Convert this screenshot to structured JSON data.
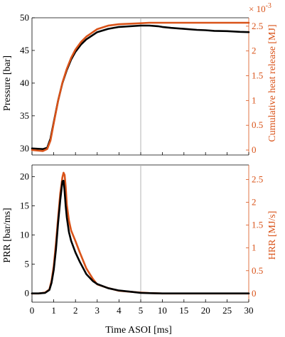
{
  "colors": {
    "left_axis": "#000000",
    "right_axis": "#d95319",
    "divider": "#b3b3b3"
  },
  "x_axis": {
    "label": "Time ASOI [ms]",
    "segments": [
      {
        "range": [
          0,
          5
        ],
        "ticks": [
          "0",
          "1",
          "2",
          "3",
          "4",
          "5"
        ]
      },
      {
        "range": [
          5,
          30
        ],
        "ticks": [
          "10",
          "15",
          "20",
          "25",
          "30"
        ]
      }
    ]
  },
  "chart_data": [
    {
      "type": "line",
      "panel": "top",
      "grid": false,
      "left_axis": {
        "label": "Pressure [bar]",
        "ylim": [
          29,
          50
        ],
        "ticks": [
          "30",
          "35",
          "40",
          "45",
          "50"
        ]
      },
      "right_axis": {
        "label": "Cumulative heat release [MJ]",
        "ylim": [
          -0.0001,
          0.00267
        ],
        "ticks": [
          "0",
          "0.5",
          "1",
          "1.5",
          "2",
          "2.5"
        ],
        "exponent_label": "× 10",
        "exponent_power": "-3"
      },
      "series": [
        {
          "axis": "left",
          "color": "#000000",
          "x": [
            0,
            0.5,
            0.7,
            0.85,
            1.0,
            1.2,
            1.4,
            1.6,
            1.8,
            2.0,
            2.25,
            2.5,
            3.0,
            3.5,
            4.0,
            5.0,
            7,
            9,
            10,
            12,
            15,
            18,
            20,
            22,
            25,
            28,
            30
          ],
          "y": [
            30.0,
            29.9,
            30.1,
            31.5,
            34.0,
            37.3,
            40.0,
            42.0,
            43.6,
            44.8,
            45.9,
            46.7,
            47.8,
            48.3,
            48.6,
            48.8,
            48.8,
            48.7,
            48.6,
            48.45,
            48.3,
            48.15,
            48.1,
            48.0,
            47.95,
            47.85,
            47.8
          ]
        },
        {
          "axis": "right",
          "color": "#d95319",
          "x": [
            0,
            0.5,
            0.7,
            0.85,
            1.0,
            1.2,
            1.4,
            1.6,
            1.8,
            2.0,
            2.25,
            2.5,
            3.0,
            3.5,
            4.0,
            5.0,
            7,
            10,
            15,
            20,
            25,
            30
          ],
          "y": [
            0.0,
            -2e-05,
            2e-05,
            0.00019,
            0.00054,
            0.00099,
            0.00136,
            0.00164,
            0.00186,
            0.00203,
            0.00218,
            0.00229,
            0.00244,
            0.00251,
            0.00254,
            0.00256,
            0.00257,
            0.00257,
            0.00257,
            0.00257,
            0.00257,
            0.00257
          ]
        }
      ]
    },
    {
      "type": "line",
      "panel": "bottom",
      "grid": false,
      "left_axis": {
        "label": "PRR [bar/ms]",
        "ylim": [
          -1.5,
          22
        ],
        "ticks": [
          "0",
          "5",
          "10",
          "15",
          "20"
        ]
      },
      "right_axis": {
        "label": "HRR [MJ/s]",
        "ylim": [
          -0.19,
          2.82
        ],
        "ticks": [
          "0",
          "0.5",
          "1",
          "1.5",
          "2",
          "2.5"
        ]
      },
      "series": [
        {
          "axis": "right",
          "color": "#d95319",
          "x": [
            0,
            0.3,
            0.6,
            0.8,
            0.9,
            1.0,
            1.1,
            1.2,
            1.3,
            1.4,
            1.45,
            1.5,
            1.55,
            1.6,
            1.7,
            1.8,
            2.0,
            2.2,
            2.5,
            2.8,
            3.0,
            3.5,
            4.0,
            4.5,
            5.0,
            7,
            10,
            15,
            20,
            25,
            30
          ],
          "y": [
            0.0,
            0.0,
            0.02,
            0.09,
            0.28,
            0.6,
            1.1,
            1.65,
            2.2,
            2.55,
            2.65,
            2.6,
            2.35,
            1.95,
            1.6,
            1.38,
            1.15,
            0.9,
            0.55,
            0.32,
            0.2,
            0.12,
            0.06,
            0.04,
            0.02,
            0.01,
            0.0,
            0.0,
            0.0,
            0.0,
            0.0
          ]
        },
        {
          "axis": "left",
          "color": "#000000",
          "x": [
            0,
            0.3,
            0.6,
            0.8,
            0.9,
            1.0,
            1.1,
            1.2,
            1.3,
            1.4,
            1.45,
            1.5,
            1.55,
            1.6,
            1.7,
            1.8,
            2.0,
            2.2,
            2.5,
            2.8,
            3.0,
            3.5,
            4.0,
            4.5,
            5.0,
            7,
            10,
            15,
            20,
            25,
            30
          ],
          "y": [
            0.0,
            0.0,
            0.1,
            0.6,
            1.8,
            4.0,
            7.5,
            12.0,
            16.0,
            19.2,
            19.3,
            17.5,
            15.0,
            13.0,
            10.5,
            9.0,
            7.0,
            5.4,
            3.3,
            2.1,
            1.6,
            0.9,
            0.5,
            0.3,
            0.1,
            0.05,
            0.0,
            0.0,
            0.0,
            0.0,
            0.0
          ]
        }
      ]
    }
  ]
}
